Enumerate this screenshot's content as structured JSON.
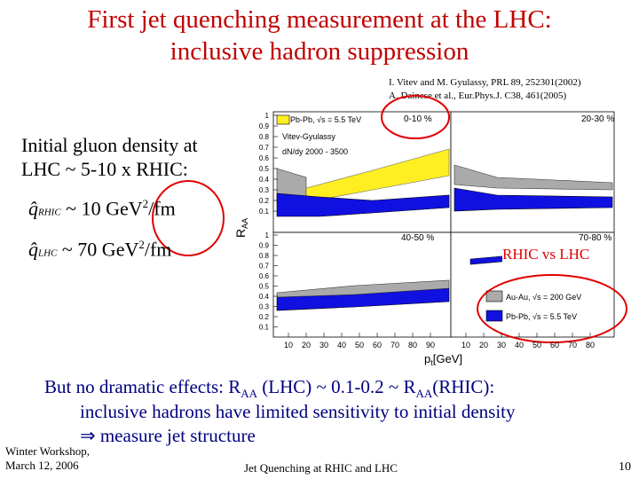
{
  "title": [
    "First jet quenching measurement at the LHC:",
    "inclusive hadron suppression"
  ],
  "references": [
    "I. Vitev and M. Gyulassy, PRL 89, 252301(2002)",
    "A. Dainese et al., Eur.Phys.J. C38, 461(2005)"
  ],
  "left_text": [
    "Initial gluon density at",
    "LHC ~ 5-10 x RHIC:"
  ],
  "formulas": [
    {
      "symbol": "q̂",
      "subscript": "RHIC",
      "relation": "~ 10 GeV",
      "power": "2",
      "unit": "/fm"
    },
    {
      "symbol": "q̂",
      "subscript": "LHC",
      "relation": "~ 70 GeV",
      "power": "2",
      "unit": "/fm"
    }
  ],
  "annotation": "RHIC vs LHC",
  "figure": {
    "y_label": "R",
    "y_label_sub": "AA",
    "x_label": "p",
    "x_label_sub": "t",
    "x_label_unit": "[GeV]",
    "panels": [
      "0-10 %",
      "20-30 %",
      "40-50 %",
      "70-80 %"
    ],
    "yticks": [
      "0.1",
      "0.2",
      "0.3",
      "0.4",
      "0.5",
      "0.6",
      "0.7",
      "0.8",
      "0.9",
      "1"
    ],
    "xticks_left": [
      "10",
      "20",
      "30",
      "40",
      "50",
      "60",
      "70",
      "80",
      "90"
    ],
    "xticks_right": [
      "10",
      "20",
      "30",
      "40",
      "50",
      "60",
      "70",
      "80"
    ],
    "top_legend": [
      "Pb-Pb, √s = 5.5 TeV",
      "Vitev-Gyulassy",
      "dN/dy  2000 - 3500"
    ],
    "bottom_legend": [
      "Au-Au, √s = 200 GeV",
      "Pb-Pb, √s = 5.5 TeV"
    ]
  },
  "bottom_text": {
    "line1_start": "But no dramatic effects: R",
    "sub1": "AA",
    "line1_mid": " (LHC) ~ 0.1-0.2 ~ R",
    "sub2": "AA",
    "line1_end": "(RHIC):",
    "line2": "inclusive hadrons have limited sensitivity to initial density",
    "line3": "⇒ measure jet structure"
  },
  "footer": {
    "left": [
      "Winter Workshop,",
      "March 12, 2006"
    ],
    "center": "Jet Quenching at RHIC and LHC",
    "page": "10"
  }
}
